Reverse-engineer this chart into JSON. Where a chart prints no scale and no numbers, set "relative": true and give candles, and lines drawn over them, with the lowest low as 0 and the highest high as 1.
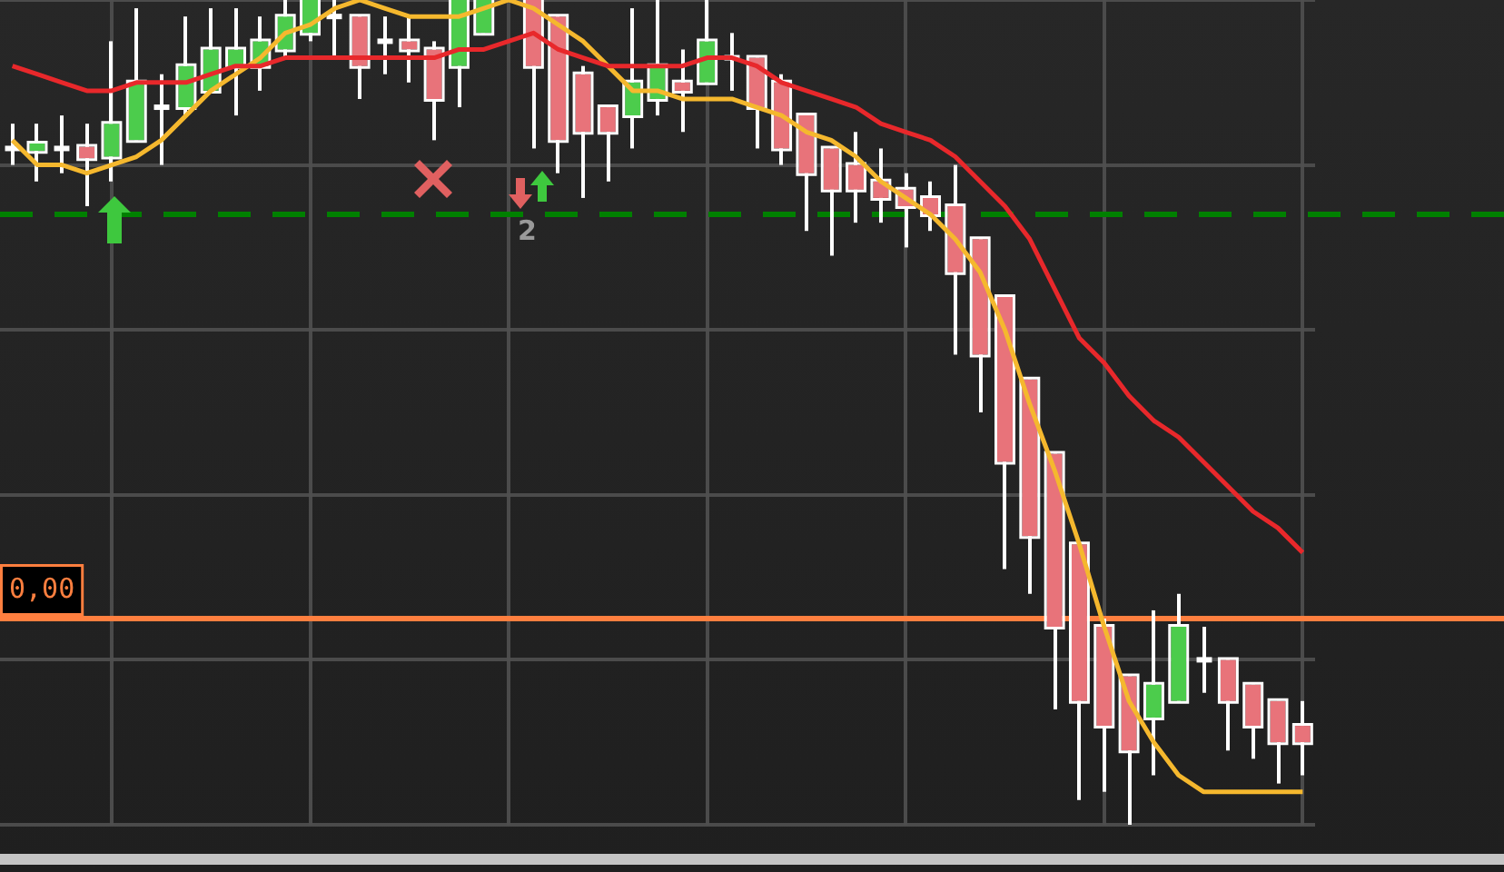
{
  "chart_data": {
    "type": "candlestick",
    "relative": true,
    "grid": true,
    "categories": [
      null,
      null,
      null,
      null,
      null,
      null,
      null,
      null,
      null,
      null,
      null,
      null,
      null,
      null,
      null,
      null,
      null,
      null,
      null,
      null,
      null,
      null,
      null,
      null,
      null,
      null,
      null,
      null,
      null,
      null,
      null,
      null,
      null,
      null,
      null,
      null,
      null,
      null,
      null,
      null,
      null,
      null,
      null,
      null,
      null,
      null,
      null,
      null,
      null,
      null,
      null,
      null,
      null
    ],
    "ohlc": [
      [
        0.82,
        0.85,
        0.8,
        0.82
      ],
      [
        0.817,
        0.85,
        0.78,
        0.826
      ],
      [
        0.82,
        0.86,
        0.79,
        0.82
      ],
      [
        0.822,
        0.85,
        0.75,
        0.808
      ],
      [
        0.81,
        0.95,
        0.78,
        0.85
      ],
      [
        0.83,
        0.99,
        0.83,
        0.9
      ],
      [
        0.87,
        0.91,
        0.8,
        0.87
      ],
      [
        0.87,
        0.98,
        0.86,
        0.92
      ],
      [
        0.89,
        0.99,
        0.89,
        0.94
      ],
      [
        0.92,
        0.99,
        0.86,
        0.94
      ],
      [
        0.92,
        0.98,
        0.89,
        0.95
      ],
      [
        0.94,
        1,
        0.93,
        0.98
      ],
      [
        0.96,
        1,
        0.95,
        1
      ],
      [
        0.98,
        1,
        0.93,
        0.98
      ],
      [
        0.98,
        0.98,
        0.88,
        0.92
      ],
      [
        0.95,
        0.98,
        0.91,
        0.95
      ],
      [
        0.95,
        0.98,
        0.9,
        0.94
      ],
      [
        0.94,
        0.95,
        0.83,
        0.88
      ],
      [
        0.92,
        1,
        0.87,
        1
      ],
      [
        0.96,
        1,
        0.96,
        1
      ],
      null,
      [
        1,
        1,
        0.82,
        0.92
      ],
      [
        0.98,
        0.98,
        0.79,
        0.83
      ],
      [
        0.91,
        0.92,
        0.76,
        0.84
      ],
      [
        0.87,
        0.87,
        0.78,
        0.84
      ],
      [
        0.86,
        0.99,
        0.82,
        0.9
      ],
      [
        0.88,
        1,
        0.86,
        0.92
      ],
      [
        0.9,
        0.94,
        0.84,
        0.89
      ],
      [
        0.9,
        1,
        0.9,
        0.95
      ],
      [
        0.93,
        0.96,
        0.89,
        0.93
      ],
      [
        0.93,
        0.93,
        0.82,
        0.87
      ],
      [
        0.9,
        0.91,
        0.8,
        0.82
      ],
      [
        0.86,
        0.86,
        0.72,
        0.79
      ],
      [
        0.82,
        0.82,
        0.69,
        0.77
      ],
      [
        0.8,
        0.84,
        0.73,
        0.77
      ],
      [
        0.78,
        0.82,
        0.73,
        0.76
      ],
      [
        0.77,
        0.79,
        0.7,
        0.75
      ],
      [
        0.76,
        0.78,
        0.72,
        0.74
      ],
      [
        0.75,
        0.8,
        0.57,
        0.67
      ],
      [
        0.71,
        0.71,
        0.5,
        0.57
      ],
      [
        0.64,
        0.64,
        0.31,
        0.44
      ],
      [
        0.54,
        0.54,
        0.28,
        0.35
      ],
      [
        0.45,
        0.45,
        0.14,
        0.24
      ],
      [
        0.34,
        0.34,
        0.03,
        0.15
      ],
      [
        0.24,
        0.25,
        0.04,
        0.12
      ],
      [
        0.18,
        0.18,
        0,
        0.09
      ],
      [
        0.13,
        0.26,
        0.06,
        0.17
      ],
      [
        0.15,
        0.28,
        0.15,
        0.24
      ],
      [
        0.2,
        0.24,
        0.16,
        0.2
      ],
      [
        0.2,
        0.2,
        0.09,
        0.15
      ],
      [
        0.17,
        0.17,
        0.08,
        0.12
      ],
      [
        0.15,
        0.15,
        0.05,
        0.1
      ],
      [
        0.12,
        0.15,
        0.06,
        0.1
      ]
    ],
    "series": [
      {
        "type": "line",
        "color": "#e8282b",
        "values": [
          0.92,
          0.91,
          0.9,
          0.89,
          0.89,
          0.9,
          0.9,
          0.9,
          0.91,
          0.92,
          0.92,
          0.93,
          0.93,
          0.93,
          0.93,
          0.93,
          0.93,
          0.93,
          0.94,
          0.94,
          0.95,
          0.96,
          0.94,
          0.93,
          0.92,
          0.92,
          0.92,
          0.92,
          0.93,
          0.93,
          0.92,
          0.9,
          0.89,
          0.88,
          0.87,
          0.85,
          0.84,
          0.83,
          0.81,
          0.78,
          0.75,
          0.71,
          0.65,
          0.59,
          0.56,
          0.52,
          0.49,
          0.47,
          0.44,
          0.41,
          0.38,
          0.36,
          0.33
        ]
      },
      {
        "type": "line",
        "color": "#f5b82e",
        "values": [
          0.83,
          0.8,
          0.8,
          0.79,
          0.8,
          0.81,
          0.83,
          0.86,
          0.89,
          0.91,
          0.93,
          0.96,
          0.97,
          0.99,
          1,
          0.99,
          0.98,
          0.98,
          0.98,
          0.99,
          1,
          0.99,
          0.97,
          0.95,
          0.92,
          0.89,
          0.89,
          0.88,
          0.88,
          0.88,
          0.87,
          0.86,
          0.84,
          0.83,
          0.81,
          0.78,
          0.76,
          0.74,
          0.71,
          0.67,
          0.6,
          0.51,
          0.43,
          0.34,
          0.24,
          0.15,
          0.1,
          0.06,
          0.04,
          0.04,
          0.04,
          0.04,
          0.04
        ]
      }
    ],
    "ref_lines": [
      {
        "axis": "y",
        "value": 0.74,
        "color": "#008000",
        "line_style": "dashed"
      },
      {
        "axis": "y",
        "value": 0.25,
        "color": "#ff7f3f"
      }
    ],
    "annotations": [
      "2",
      "0,00"
    ]
  }
}
